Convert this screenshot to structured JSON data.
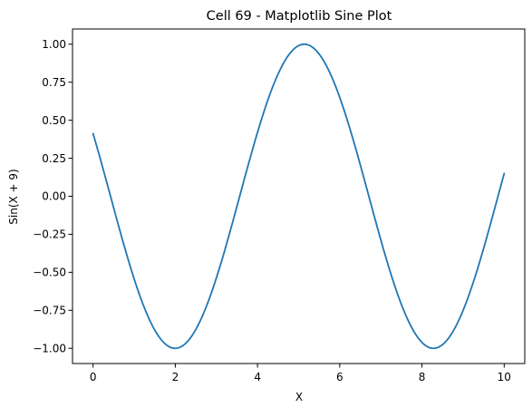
{
  "chart_data": {
    "type": "line",
    "title": "Cell 69 - Matplotlib Sine Plot",
    "xlabel": "X",
    "ylabel": "Sin(X + 9)",
    "xlim": [
      -0.5,
      10.5
    ],
    "ylim": [
      -1.1,
      1.1
    ],
    "grid": false,
    "legend": null,
    "series_color": "#1f77b4",
    "function": "sin(x + 9)",
    "x_range": [
      0,
      10
    ],
    "xticks": [
      {
        "value": 0,
        "label": "0"
      },
      {
        "value": 2,
        "label": "2"
      },
      {
        "value": 4,
        "label": "4"
      },
      {
        "value": 6,
        "label": "6"
      },
      {
        "value": 8,
        "label": "8"
      },
      {
        "value": 10,
        "label": "10"
      }
    ],
    "yticks": [
      {
        "value": -1.0,
        "label": "−1.00"
      },
      {
        "value": -0.75,
        "label": "−0.75"
      },
      {
        "value": -0.5,
        "label": "−0.50"
      },
      {
        "value": -0.25,
        "label": "−0.25"
      },
      {
        "value": 0.0,
        "label": "0.00"
      },
      {
        "value": 0.25,
        "label": "0.25"
      },
      {
        "value": 0.5,
        "label": "0.50"
      },
      {
        "value": 0.75,
        "label": "0.75"
      },
      {
        "value": 1.0,
        "label": "1.00"
      }
    ],
    "series": [
      {
        "x": [
          0,
          0.25,
          0.5,
          0.75,
          1.0,
          1.25,
          1.5,
          1.75,
          2.0,
          2.25,
          2.5,
          2.75,
          3.0,
          3.25,
          3.5,
          3.75,
          4.0,
          4.25,
          4.5,
          4.75,
          5.0,
          5.25,
          5.5,
          5.75,
          6.0,
          6.25,
          6.5,
          6.75,
          7.0,
          7.25,
          7.5,
          7.75,
          8.0,
          8.25,
          8.5,
          8.75,
          9.0,
          9.25,
          9.5,
          9.75,
          10.0
        ],
        "y": [
          0.412,
          0.182,
          -0.058,
          -0.293,
          -0.506,
          -0.687,
          -0.832,
          -0.936,
          -0.99,
          -0.991,
          -0.939,
          -0.838,
          -0.695,
          -0.515,
          -0.304,
          -0.068,
          0.171,
          0.403,
          0.612,
          0.786,
          0.913,
          0.986,
          0.999,
          0.952,
          0.849,
          0.69,
          0.482,
          0.236,
          -0.026,
          -0.284,
          -0.517,
          -0.714,
          -0.867,
          -0.966,
          -0.999,
          -0.964,
          -0.856,
          -0.68,
          -0.443,
          -0.163,
          0.15
        ]
      }
    ]
  }
}
